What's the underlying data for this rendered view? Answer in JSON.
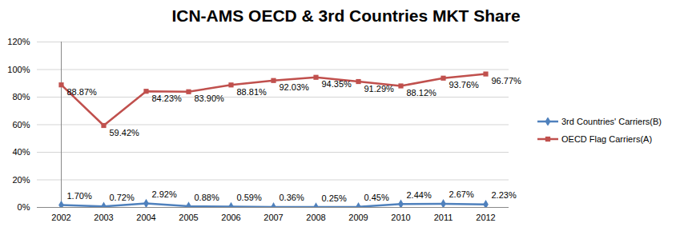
{
  "chart_data": {
    "type": "line",
    "title": "ICN-AMS OECD & 3rd Countries MKT Share",
    "categories": [
      "2002",
      "2003",
      "2004",
      "2005",
      "2006",
      "2007",
      "2008",
      "2009",
      "2010",
      "2011",
      "2012"
    ],
    "series": [
      {
        "name": "3rd Countries' Carriers(B)",
        "color": "#4f81bd",
        "marker": "diamond",
        "values": [
          1.7,
          0.72,
          2.92,
          0.88,
          0.59,
          0.36,
          0.25,
          0.45,
          2.44,
          2.67,
          2.23
        ],
        "value_labels": [
          "1.70%",
          "0.72%",
          "2.92%",
          "0.88%",
          "0.59%",
          "0.36%",
          "0.25%",
          "0.45%",
          "2.44%",
          "2.67%",
          "2.23%"
        ]
      },
      {
        "name": "OECD Flag Carriers(A)",
        "color": "#c0504d",
        "marker": "square",
        "values": [
          88.87,
          59.42,
          84.23,
          83.9,
          88.81,
          92.03,
          94.35,
          91.29,
          88.12,
          93.76,
          96.77
        ],
        "value_labels": [
          "88.87%",
          "59.42%",
          "84.23%",
          "83.90%",
          "88.81%",
          "92.03%",
          "94.35%",
          "91.29%",
          "88.12%",
          "93.76%",
          "96.77%"
        ]
      }
    ],
    "ylim": [
      0,
      120
    ],
    "yticks": [
      {
        "value": 0,
        "label": "0%"
      },
      {
        "value": 20,
        "label": "20%"
      },
      {
        "value": 40,
        "label": "40%"
      },
      {
        "value": 60,
        "label": "60%"
      },
      {
        "value": 80,
        "label": "80%"
      },
      {
        "value": 100,
        "label": "100%"
      },
      {
        "value": 120,
        "label": "120%"
      }
    ],
    "grid": true,
    "data_labels": true,
    "legend": "right"
  }
}
